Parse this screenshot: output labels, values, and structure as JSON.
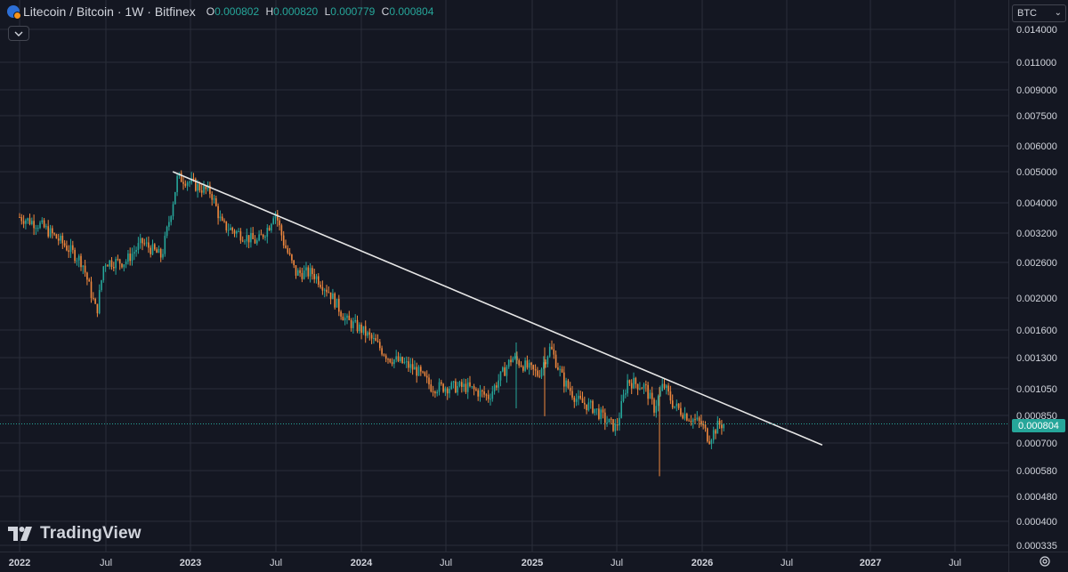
{
  "header": {
    "title": "Litecoin / Bitcoin · 1W · Bitfinex",
    "ohlc": [
      {
        "key": "O",
        "value": "0.000802"
      },
      {
        "key": "H",
        "value": "0.000820"
      },
      {
        "key": "L",
        "value": "0.000779"
      },
      {
        "key": "C",
        "value": "0.000804"
      }
    ]
  },
  "currency": "BTC",
  "logo_text": "TradingView",
  "colors": {
    "background": "#141722",
    "grid": "#2a2e39",
    "up": "#26a69a",
    "down": "#f0883e",
    "trendline": "#e6e6e6",
    "price_label_bg": "#26a69a"
  },
  "icons": {
    "collapse": "chevron-down-icon",
    "settings": "gear-icon",
    "symbol": "coin-pair-icon"
  },
  "chart_data": {
    "type": "candlestick",
    "y_scale": "log",
    "y_ticks": [
      "0.014000",
      "0.011000",
      "0.009000",
      "0.007500",
      "0.006000",
      "0.005000",
      "0.004000",
      "0.003200",
      "0.002600",
      "0.002000",
      "0.001600",
      "0.001300",
      "0.001050",
      "0.000850",
      "0.000700",
      "0.000580",
      "0.000480",
      "0.000400",
      "0.000335"
    ],
    "x_ticks": [
      "2022",
      "Jul",
      "2023",
      "Jul",
      "2024",
      "Jul",
      "2025",
      "Jul",
      "2026",
      "Jul",
      "2027",
      "Jul"
    ],
    "last_price": "0.000804",
    "candle_points": [
      [
        "2022-01-01",
        0.0036
      ],
      [
        "2022-02-15",
        0.0034
      ],
      [
        "2022-04-01",
        0.003
      ],
      [
        "2022-05-15",
        0.0026
      ],
      [
        "2022-06-15",
        0.0018
      ],
      [
        "2022-07-01",
        0.0026
      ],
      [
        "2022-08-15",
        0.0026
      ],
      [
        "2022-09-20",
        0.003
      ],
      [
        "2022-11-01",
        0.0027
      ],
      [
        "2022-11-25",
        0.004
      ],
      [
        "2022-12-05",
        0.0048
      ],
      [
        "2022-12-25",
        0.0047
      ],
      [
        "2023-01-15",
        0.0045
      ],
      [
        "2023-02-15",
        0.0043
      ],
      [
        "2023-03-10",
        0.0034
      ],
      [
        "2023-04-15",
        0.0032
      ],
      [
        "2023-05-25",
        0.003
      ],
      [
        "2023-06-20",
        0.0034
      ],
      [
        "2023-07-01",
        0.0038
      ],
      [
        "2023-07-20",
        0.003
      ],
      [
        "2023-08-15",
        0.0024
      ],
      [
        "2023-09-20",
        0.0024
      ],
      [
        "2023-10-25",
        0.0021
      ],
      [
        "2023-12-01",
        0.0017
      ],
      [
        "2024-01-01",
        0.0016
      ],
      [
        "2024-02-01",
        0.00145
      ],
      [
        "2024-03-01",
        0.0013
      ],
      [
        "2024-04-01",
        0.00125
      ],
      [
        "2024-05-01",
        0.00118
      ],
      [
        "2024-06-01",
        0.00105
      ],
      [
        "2024-07-01",
        0.00105
      ],
      [
        "2024-08-15",
        0.00105
      ],
      [
        "2024-10-01",
        0.00098
      ],
      [
        "2024-11-20",
        0.0013
      ],
      [
        "2025-01-15",
        0.00115
      ],
      [
        "2025-02-10",
        0.0014
      ],
      [
        "2025-03-10",
        0.0011
      ],
      [
        "2025-04-10",
        0.00095
      ],
      [
        "2025-05-15",
        0.0009
      ],
      [
        "2025-06-10",
        0.00082
      ],
      [
        "2025-07-01",
        0.00078
      ],
      [
        "2025-07-25",
        0.0011
      ],
      [
        "2025-09-01",
        0.00105
      ],
      [
        "2025-09-20",
        0.0009
      ],
      [
        "2025-10-10",
        0.00107
      ],
      [
        "2025-11-01",
        0.00092
      ],
      [
        "2025-12-01",
        0.00085
      ],
      [
        "2026-01-01",
        0.0008
      ],
      [
        "2026-01-15",
        0.00072
      ],
      [
        "2026-02-05",
        0.0008
      ],
      [
        "2026-02-20",
        0.000804
      ]
    ],
    "trendline": {
      "start": {
        "date": "2022-11-25",
        "value": 0.005
      },
      "end": {
        "date": "2026-09-15",
        "value": 0.00069
      }
    }
  }
}
